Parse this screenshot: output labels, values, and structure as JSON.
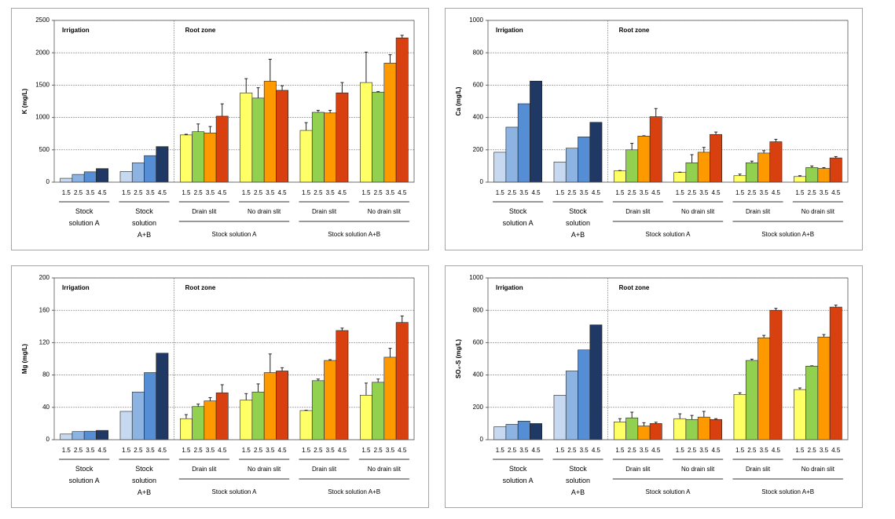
{
  "chart_data": [
    {
      "type": "bar",
      "ylabel": "K (mg/L)",
      "ylim": [
        0,
        2500
      ],
      "yticks": [
        0,
        500,
        1000,
        1500,
        2000,
        2500
      ],
      "grid": true,
      "categories": [
        "1.5",
        "2.5",
        "3.5",
        "4.5"
      ],
      "irrigation": {
        "label": "Irrigation",
        "colors": [
          "#c6d9f1",
          "#8db3e2",
          "#558ed5",
          "#1f3864"
        ],
        "groups": [
          {
            "label": "Stock solution A",
            "values": [
              60,
              120,
              160,
              210
            ]
          },
          {
            "label": "Stock solution A+B",
            "values": [
              165,
              300,
              410,
              550
            ]
          }
        ]
      },
      "root_zone": {
        "label": "Root zone",
        "colors": [
          "#ffff66",
          "#92d050",
          "#ff9900",
          "#d9400f"
        ],
        "supergroups": [
          {
            "label": "Stock solution A",
            "groups": [
              {
                "label": "Drain slit",
                "values": [
                  730,
                  780,
                  760,
                  1020
                ],
                "errors": [
                  10,
                  120,
                  100,
                  190
                ]
              },
              {
                "label": "No drain slit",
                "values": [
                  1380,
                  1300,
                  1560,
                  1420
                ],
                "errors": [
                  220,
                  160,
                  340,
                  70
                ]
              }
            ]
          },
          {
            "label": "Stock solution A+B",
            "groups": [
              {
                "label": "Drain slit",
                "values": [
                  800,
                  1080,
                  1070,
                  1380
                ],
                "errors": [
                  120,
                  30,
                  40,
                  160
                ]
              },
              {
                "label": "No drain slit",
                "values": [
                  1540,
                  1390,
                  1840,
                  2230
                ],
                "errors": [
                  470,
                  10,
                  130,
                  40
                ]
              }
            ]
          }
        ]
      }
    },
    {
      "type": "bar",
      "ylabel": "Ca (mg/L)",
      "ylim": [
        0,
        1000
      ],
      "yticks": [
        0,
        200,
        400,
        600,
        800,
        1000
      ],
      "grid": true,
      "categories": [
        "1.5",
        "2.5",
        "3.5",
        "4.5"
      ],
      "irrigation": {
        "label": "Irrigation",
        "colors": [
          "#c6d9f1",
          "#8db3e2",
          "#558ed5",
          "#1f3864"
        ],
        "groups": [
          {
            "label": "Stock solution A",
            "values": [
              185,
              340,
              485,
              625
            ]
          },
          {
            "label": "Stock solution A+B",
            "values": [
              125,
              210,
              280,
              370
            ]
          }
        ]
      },
      "root_zone": {
        "label": "Root zone",
        "colors": [
          "#ffff66",
          "#92d050",
          "#ff9900",
          "#d9400f"
        ],
        "supergroups": [
          {
            "label": "Stock solution A",
            "groups": [
              {
                "label": "Drain slit",
                "values": [
                  70,
                  200,
                  285,
                  405
                ],
                "errors": [
                  2,
                  40,
                  2,
                  50
                ]
              },
              {
                "label": "No drain slit",
                "values": [
                  60,
                  120,
                  185,
                  295
                ],
                "errors": [
                  2,
                  50,
                  30,
                  15
                ]
              }
            ]
          },
          {
            "label": "Stock solution A+B",
            "groups": [
              {
                "label": "Drain slit",
                "values": [
                  40,
                  120,
                  180,
                  250
                ],
                "errors": [
                  10,
                  10,
                  15,
                  15
                ]
              },
              {
                "label": "No drain slit",
                "values": [
                  35,
                  90,
                  85,
                  150
                ],
                "errors": [
                  5,
                  10,
                  5,
                  8
                ]
              }
            ]
          }
        ]
      }
    },
    {
      "type": "bar",
      "ylabel": "Mg (mg/L)",
      "ylim": [
        0,
        200
      ],
      "yticks": [
        0,
        40,
        80,
        120,
        160,
        200
      ],
      "grid": true,
      "categories": [
        "1.5",
        "2.5",
        "3.5",
        "4.5"
      ],
      "irrigation": {
        "label": "Irrigation",
        "colors": [
          "#c6d9f1",
          "#8db3e2",
          "#558ed5",
          "#1f3864"
        ],
        "groups": [
          {
            "label": "Stock solution A",
            "values": [
              7,
              10,
              10.5,
              11.5
            ]
          },
          {
            "label": "Stock solution A+B",
            "values": [
              35,
              59,
              83,
              107
            ]
          }
        ]
      },
      "root_zone": {
        "label": "Root zone",
        "colors": [
          "#ffff66",
          "#92d050",
          "#ff9900",
          "#d9400f"
        ],
        "supergroups": [
          {
            "label": "Stock solution A",
            "groups": [
              {
                "label": "Drain slit",
                "values": [
                  26,
                  41,
                  48,
                  58
                ],
                "errors": [
                  5,
                  3,
                  4,
                  10
                ]
              },
              {
                "label": "No drain slit",
                "values": [
                  49,
                  59,
                  83,
                  85
                ],
                "errors": [
                  8,
                  10,
                  23,
                  4
                ]
              }
            ]
          },
          {
            "label": "Stock solution A+B",
            "groups": [
              {
                "label": "Drain slit",
                "values": [
                  36,
                  73,
                  98,
                  135
                ],
                "errors": [
                  0.5,
                  2,
                  1,
                  3
                ]
              },
              {
                "label": "No drain slit",
                "values": [
                  55,
                  71,
                  102,
                  145
                ],
                "errors": [
                  15,
                  4,
                  11,
                  8
                ]
              }
            ]
          }
        ]
      }
    },
    {
      "type": "bar",
      "ylabel": "SO₄-S (mg/L)",
      "ylim": [
        0,
        1000
      ],
      "yticks": [
        0,
        200,
        400,
        600,
        800,
        1000
      ],
      "grid": true,
      "categories": [
        "1.5",
        "2.5",
        "3.5",
        "4.5"
      ],
      "irrigation": {
        "label": "Irrigation",
        "colors": [
          "#c6d9f1",
          "#8db3e2",
          "#558ed5",
          "#1f3864"
        ],
        "groups": [
          {
            "label": "Stock solution A",
            "values": [
              80,
              95,
              115,
              100
            ]
          },
          {
            "label": "Stock solution A+B",
            "values": [
              275,
              425,
              555,
              710
            ]
          }
        ]
      },
      "root_zone": {
        "label": "Root zone",
        "colors": [
          "#ffff66",
          "#92d050",
          "#ff9900",
          "#d9400f"
        ],
        "supergroups": [
          {
            "label": "Stock solution A",
            "groups": [
              {
                "label": "Drain slit",
                "values": [
                  110,
                  135,
                  85,
                  100
                ],
                "errors": [
                  20,
                  35,
                  20,
                  8
                ]
              },
              {
                "label": "No drain slit",
                "values": [
                  130,
                  125,
                  140,
                  125
                ],
                "errors": [
                  30,
                  25,
                  35,
                  5
                ]
              }
            ]
          },
          {
            "label": "Stock solution A+B",
            "groups": [
              {
                "label": "Drain slit",
                "values": [
                  280,
                  490,
                  630,
                  800
                ],
                "errors": [
                  10,
                  8,
                  15,
                  12
                ]
              },
              {
                "label": "No drain slit",
                "values": [
                  310,
                  455,
                  635,
                  820
                ],
                "errors": [
                  10,
                  2,
                  15,
                  12
                ]
              }
            ]
          }
        ]
      }
    }
  ]
}
